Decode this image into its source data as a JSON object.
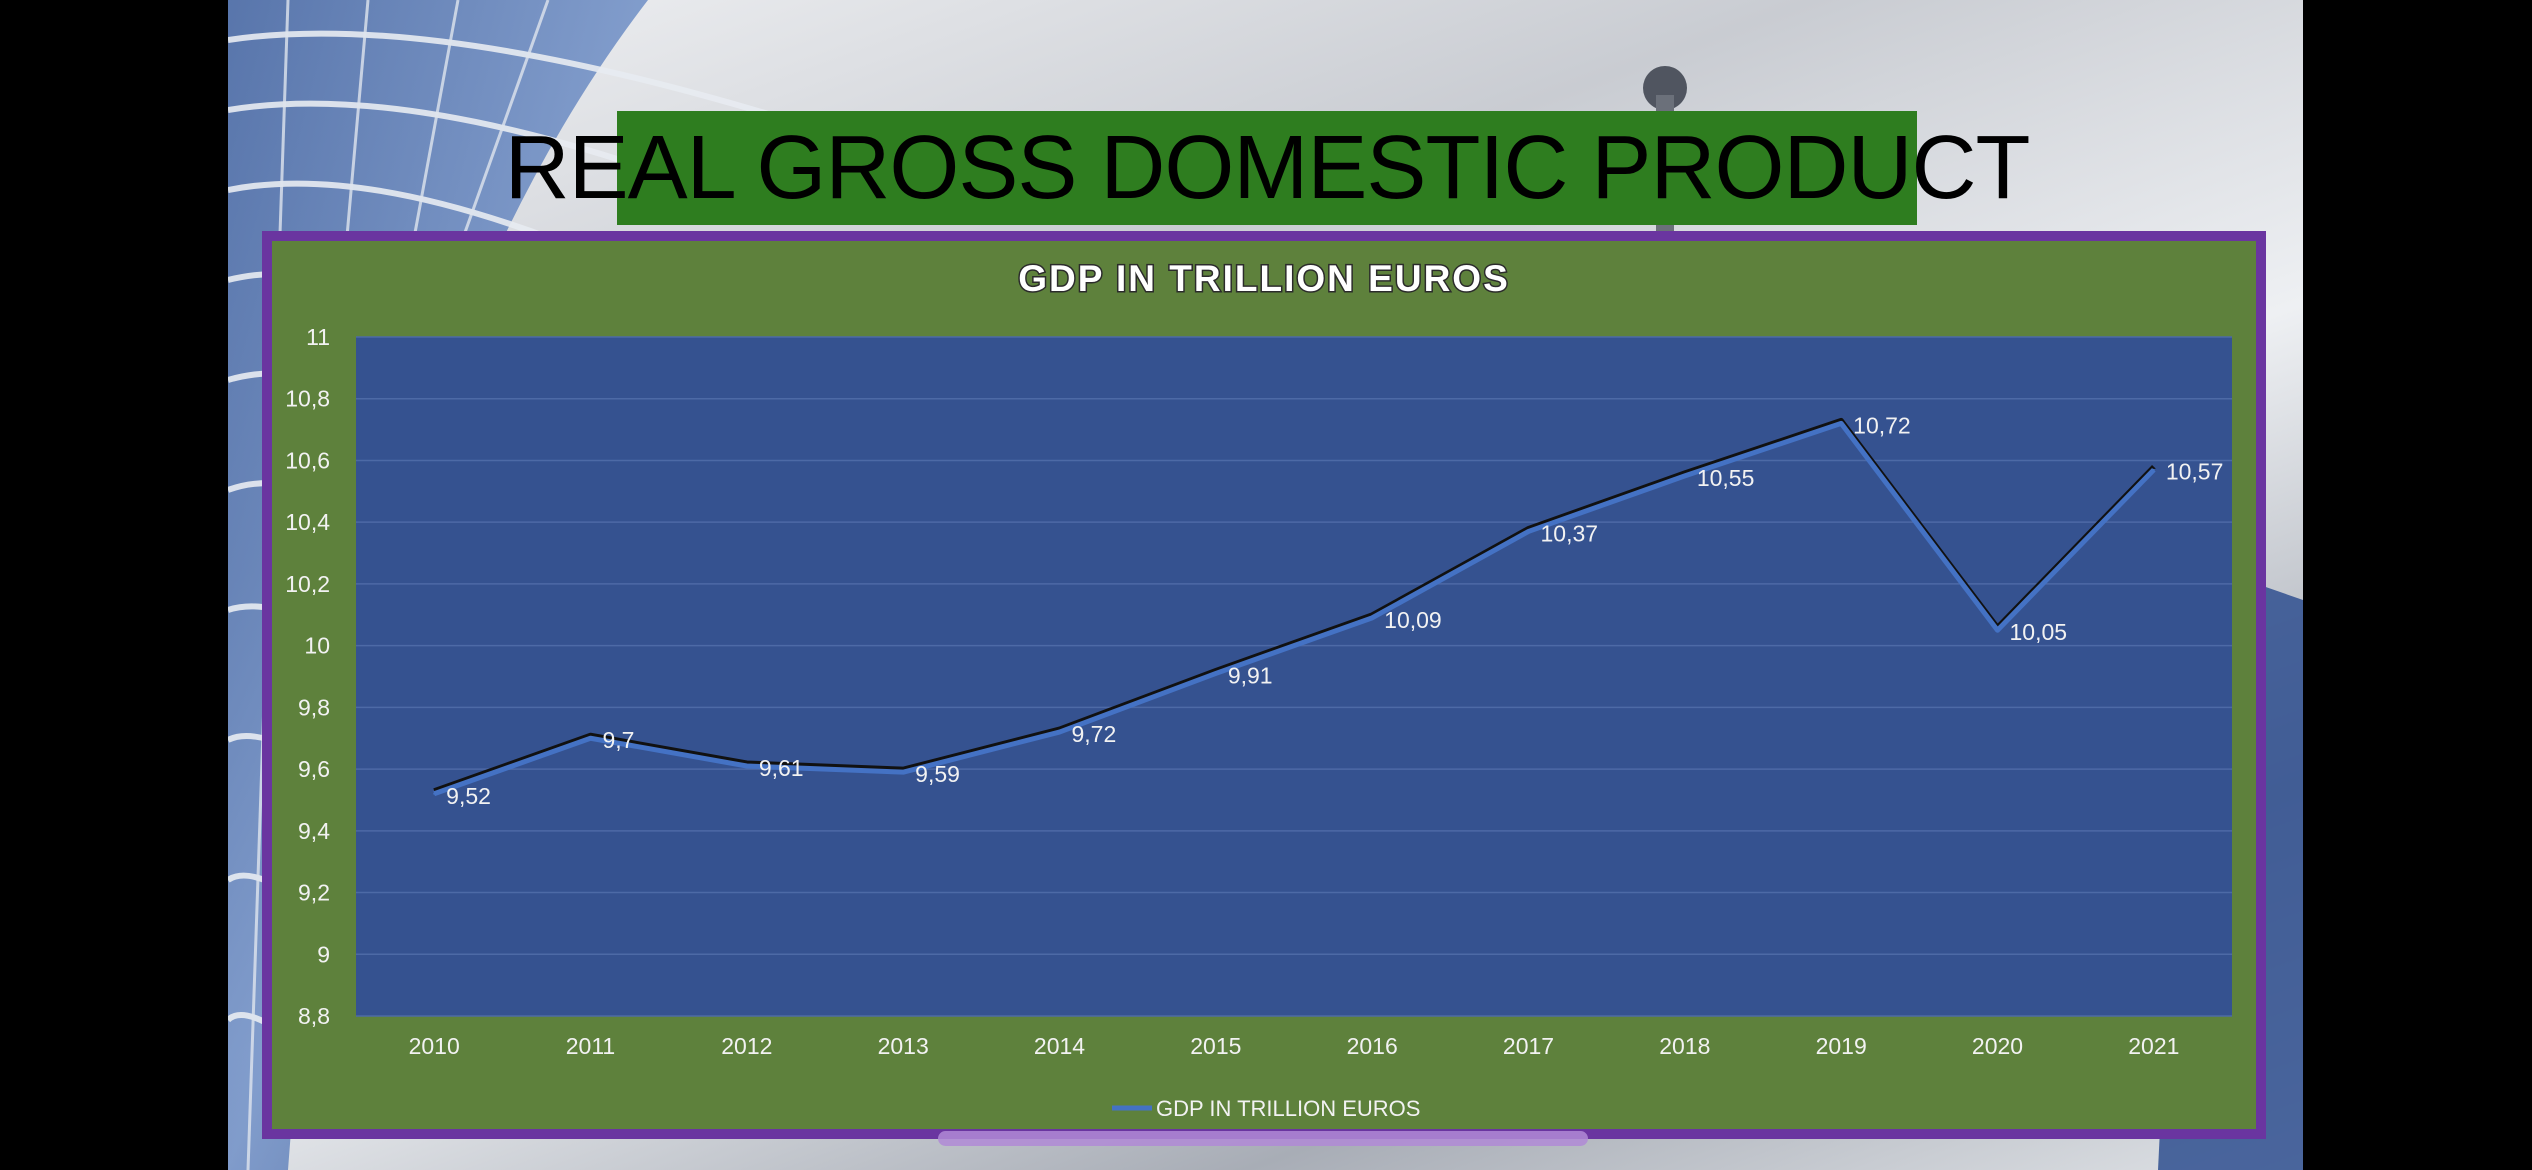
{
  "slide": {
    "title": "REAL GROSS DOMESTIC PRODUCT"
  },
  "colors": {
    "title_bg": "#2e7d1f",
    "chart_area_bg": "#5e813c",
    "chart_border": "#6a35a0",
    "plot_bg": "#355290",
    "line": "#4472c4"
  },
  "chart_data": {
    "type": "line",
    "title": "GDP IN TRILLION EUROS",
    "x": [
      "2010",
      "2011",
      "2012",
      "2013",
      "2014",
      "2015",
      "2016",
      "2017",
      "2018",
      "2019",
      "2020",
      "2021"
    ],
    "series": [
      {
        "name": "GDP IN TRILLION EUROS",
        "values": [
          9.52,
          9.7,
          9.61,
          9.59,
          9.72,
          9.91,
          10.09,
          10.37,
          10.55,
          10.72,
          10.05,
          10.57
        ],
        "labels": [
          "9,52",
          "9,7",
          "9,61",
          "9,59",
          "9,72",
          "9,91",
          "10,09",
          "10,37",
          "10,55",
          "10,72",
          "10,05",
          "10,57"
        ]
      }
    ],
    "ylim": [
      8.8,
      11
    ],
    "yticks": [
      8.8,
      9,
      9.2,
      9.4,
      9.6,
      9.8,
      10,
      10.2,
      10.4,
      10.6,
      10.8,
      11
    ],
    "ytick_labels": [
      "8,8",
      "9",
      "9,2",
      "9,4",
      "9,6",
      "9,8",
      "10",
      "10,2",
      "10,4",
      "10,6",
      "10,8",
      "11"
    ],
    "grid": true,
    "legend": "bottom"
  }
}
